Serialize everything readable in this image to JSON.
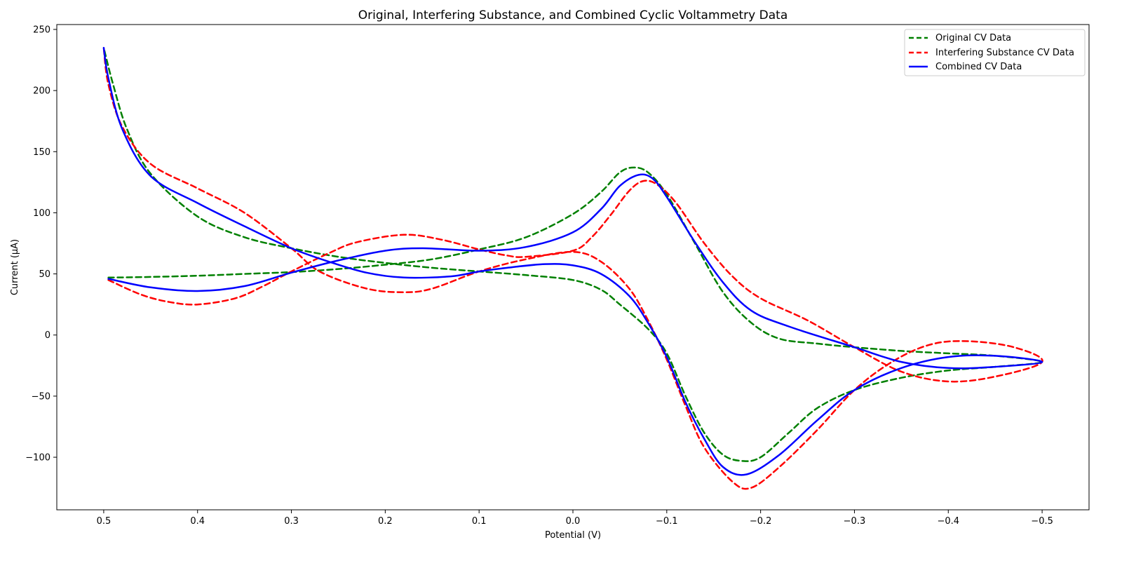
{
  "chart_data": {
    "type": "line",
    "title": "Original, Interfering Substance, and Combined Cyclic Voltammetry Data",
    "xlabel": "Potential (V)",
    "ylabel": "Current (µA)",
    "xlim": [
      0.55,
      -0.55
    ],
    "ylim": [
      -143,
      254
    ],
    "x_inverted": true,
    "xticks": [
      0.5,
      0.4,
      0.3,
      0.2,
      0.1,
      0.0,
      -0.1,
      -0.2,
      -0.3,
      -0.4,
      -0.5
    ],
    "xtick_labels": [
      "0.5",
      "0.4",
      "0.3",
      "0.2",
      "0.1",
      "0.0",
      "−0.1",
      "−0.2",
      "−0.3",
      "−0.4",
      "−0.5"
    ],
    "yticks": [
      250,
      200,
      150,
      100,
      50,
      0,
      -50,
      -100
    ],
    "ytick_labels": [
      "250",
      "200",
      "150",
      "100",
      "50",
      "0",
      "−50",
      "−100"
    ],
    "grid": false,
    "legend_position": "top-right",
    "series": [
      {
        "name": "Original CV Data",
        "color": "#008000",
        "style": "dashed",
        "points": [
          [
            0.495,
            47
          ],
          [
            0.45,
            47.5
          ],
          [
            0.4,
            48.5
          ],
          [
            0.35,
            50
          ],
          [
            0.3,
            51.5
          ],
          [
            0.25,
            54
          ],
          [
            0.2,
            57.5
          ],
          [
            0.15,
            62
          ],
          [
            0.1,
            70
          ],
          [
            0.05,
            80
          ],
          [
            0.0,
            99
          ],
          [
            -0.03,
            117
          ],
          [
            -0.05,
            133
          ],
          [
            -0.065,
            137
          ],
          [
            -0.08,
            133
          ],
          [
            -0.1,
            115
          ],
          [
            -0.13,
            75
          ],
          [
            -0.16,
            35
          ],
          [
            -0.19,
            10
          ],
          [
            -0.22,
            -3
          ],
          [
            -0.26,
            -7
          ],
          [
            -0.3,
            -10
          ],
          [
            -0.35,
            -13
          ],
          [
            -0.4,
            -15
          ],
          [
            -0.45,
            -17
          ],
          [
            -0.5,
            -22
          ],
          [
            -0.45,
            -26
          ],
          [
            -0.4,
            -29
          ],
          [
            -0.35,
            -35
          ],
          [
            -0.3,
            -45
          ],
          [
            -0.26,
            -60
          ],
          [
            -0.23,
            -80
          ],
          [
            -0.2,
            -100
          ],
          [
            -0.18,
            -103
          ],
          [
            -0.16,
            -98
          ],
          [
            -0.14,
            -80
          ],
          [
            -0.12,
            -50
          ],
          [
            -0.1,
            -15
          ],
          [
            -0.08,
            5
          ],
          [
            -0.05,
            25
          ],
          [
            -0.03,
            37
          ],
          [
            0.0,
            45
          ],
          [
            0.05,
            49
          ],
          [
            0.1,
            52
          ],
          [
            0.15,
            55
          ],
          [
            0.2,
            59
          ],
          [
            0.25,
            64
          ],
          [
            0.3,
            71
          ],
          [
            0.35,
            80
          ],
          [
            0.4,
            97
          ],
          [
            0.45,
            132
          ],
          [
            0.475,
            168
          ],
          [
            0.49,
            205
          ],
          [
            0.5,
            235
          ]
        ]
      },
      {
        "name": "Interfering Substance CV Data",
        "color": "#ff0000",
        "style": "dashed",
        "points": [
          [
            0.495,
            45
          ],
          [
            0.46,
            33
          ],
          [
            0.43,
            27
          ],
          [
            0.4,
            25
          ],
          [
            0.36,
            30
          ],
          [
            0.33,
            40
          ],
          [
            0.3,
            52
          ],
          [
            0.26,
            67
          ],
          [
            0.23,
            76
          ],
          [
            0.18,
            82
          ],
          [
            0.14,
            78
          ],
          [
            0.1,
            70
          ],
          [
            0.07,
            65
          ],
          [
            0.05,
            64
          ],
          [
            0.0,
            69
          ],
          [
            -0.02,
            80
          ],
          [
            -0.04,
            98
          ],
          [
            -0.06,
            118
          ],
          [
            -0.075,
            126
          ],
          [
            -0.09,
            123
          ],
          [
            -0.11,
            108
          ],
          [
            -0.14,
            75
          ],
          [
            -0.17,
            48
          ],
          [
            -0.2,
            30
          ],
          [
            -0.25,
            12
          ],
          [
            -0.3,
            -10
          ],
          [
            -0.35,
            -30
          ],
          [
            -0.4,
            -38
          ],
          [
            -0.45,
            -34
          ],
          [
            -0.5,
            -22
          ],
          [
            -0.47,
            -10
          ],
          [
            -0.42,
            -5
          ],
          [
            -0.38,
            -8
          ],
          [
            -0.34,
            -22
          ],
          [
            -0.3,
            -45
          ],
          [
            -0.26,
            -78
          ],
          [
            -0.22,
            -108
          ],
          [
            -0.19,
            -125
          ],
          [
            -0.17,
            -120
          ],
          [
            -0.14,
            -92
          ],
          [
            -0.12,
            -58
          ],
          [
            -0.1,
            -20
          ],
          [
            -0.08,
            12
          ],
          [
            -0.06,
            38
          ],
          [
            -0.03,
            60
          ],
          [
            0.0,
            68
          ],
          [
            0.05,
            62
          ],
          [
            0.1,
            52
          ],
          [
            0.15,
            38
          ],
          [
            0.18,
            35
          ],
          [
            0.22,
            38
          ],
          [
            0.27,
            52
          ],
          [
            0.3,
            71
          ],
          [
            0.35,
            100
          ],
          [
            0.4,
            120
          ],
          [
            0.45,
            140
          ],
          [
            0.48,
            170
          ],
          [
            0.495,
            205
          ],
          [
            0.5,
            235
          ]
        ]
      },
      {
        "name": "Combined CV Data",
        "color": "#0000ff",
        "style": "solid",
        "points": [
          [
            0.495,
            46
          ],
          [
            0.45,
            39
          ],
          [
            0.4,
            36
          ],
          [
            0.35,
            40
          ],
          [
            0.3,
            51
          ],
          [
            0.25,
            61
          ],
          [
            0.2,
            69
          ],
          [
            0.16,
            71
          ],
          [
            0.1,
            69
          ],
          [
            0.05,
            72
          ],
          [
            0.0,
            84
          ],
          [
            -0.03,
            103
          ],
          [
            -0.05,
            122
          ],
          [
            -0.07,
            131
          ],
          [
            -0.085,
            128
          ],
          [
            -0.1,
            113
          ],
          [
            -0.13,
            76
          ],
          [
            -0.16,
            43
          ],
          [
            -0.19,
            20
          ],
          [
            -0.23,
            7
          ],
          [
            -0.3,
            -10
          ],
          [
            -0.35,
            -22
          ],
          [
            -0.4,
            -27
          ],
          [
            -0.45,
            -26
          ],
          [
            -0.5,
            -22
          ],
          [
            -0.45,
            -17
          ],
          [
            -0.4,
            -18
          ],
          [
            -0.35,
            -27
          ],
          [
            -0.3,
            -45
          ],
          [
            -0.26,
            -70
          ],
          [
            -0.22,
            -98
          ],
          [
            -0.185,
            -114
          ],
          [
            -0.16,
            -108
          ],
          [
            -0.14,
            -85
          ],
          [
            -0.12,
            -55
          ],
          [
            -0.1,
            -18
          ],
          [
            -0.08,
            10
          ],
          [
            -0.06,
            32
          ],
          [
            -0.03,
            50
          ],
          [
            0.0,
            57
          ],
          [
            0.03,
            58
          ],
          [
            0.07,
            55
          ],
          [
            0.1,
            52
          ],
          [
            0.13,
            48
          ],
          [
            0.18,
            47
          ],
          [
            0.22,
            51
          ],
          [
            0.26,
            60
          ],
          [
            0.3,
            71
          ],
          [
            0.35,
            89
          ],
          [
            0.4,
            108
          ],
          [
            0.45,
            130
          ],
          [
            0.48,
            168
          ],
          [
            0.495,
            210
          ],
          [
            0.5,
            235
          ]
        ]
      }
    ]
  }
}
